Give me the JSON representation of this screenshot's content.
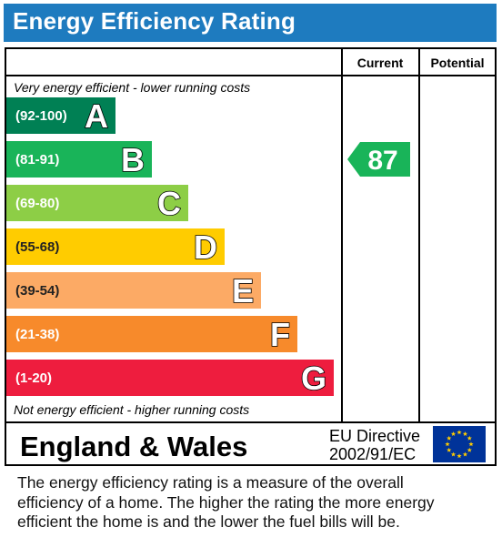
{
  "title": "Energy Efficiency Rating",
  "columns": {
    "current": "Current",
    "potential": "Potential"
  },
  "top_note": "Very energy efficient - lower running costs",
  "bottom_note": "Not energy efficient - higher running costs",
  "chart_data": {
    "type": "bar",
    "categories": [
      "A",
      "B",
      "C",
      "D",
      "E",
      "F",
      "G"
    ],
    "ranges": [
      "(92-100)",
      "(81-91)",
      "(69-80)",
      "(55-68)",
      "(39-54)",
      "(21-38)",
      "(1-20)"
    ],
    "colors": [
      "#008054",
      "#19b459",
      "#8dce46",
      "#ffcc00",
      "#fcaa65",
      "#f78a2b",
      "#ee1d3e"
    ],
    "current": {
      "value": 87,
      "band": "B",
      "color": "#19b459"
    },
    "potential": null
  },
  "region": "England & Wales",
  "directive": {
    "line1": "EU Directive",
    "line2": "2002/91/EC"
  },
  "eu_flag": {
    "background": "#003399",
    "stars": "#ffcc00",
    "icon": "eu-flag-icon"
  },
  "description": "The energy efficiency rating is a measure of the overall\nefficiency of a home.  The higher the rating the more energy\nefficient the home is and the lower the fuel bills will be."
}
